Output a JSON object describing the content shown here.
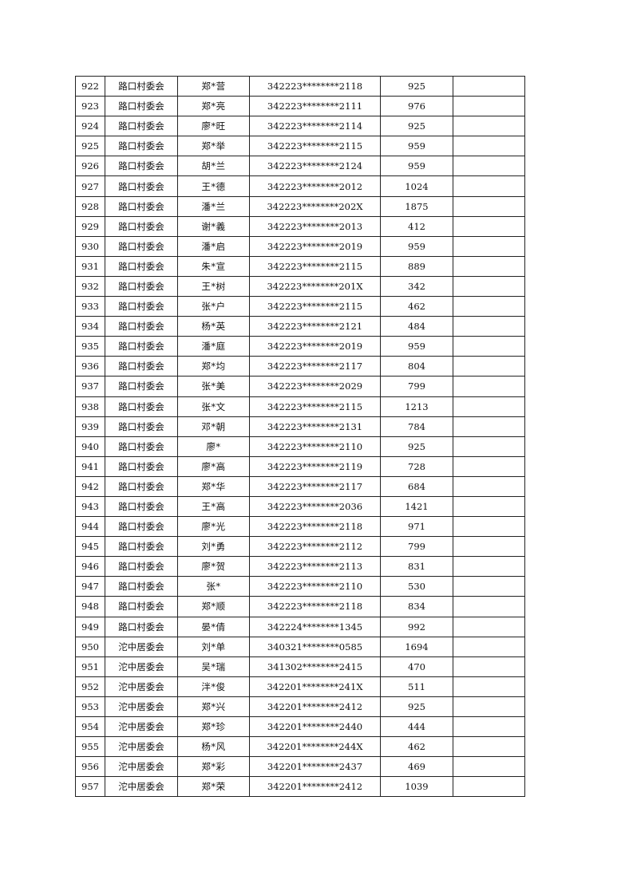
{
  "table": {
    "rows": [
      [
        "922",
        "路口村委会",
        "郑*营",
        "342223********2118",
        "925",
        ""
      ],
      [
        "923",
        "路口村委会",
        "郑*亮",
        "342223********2111",
        "976",
        ""
      ],
      [
        "924",
        "路口村委会",
        "廖*旺",
        "342223********2114",
        "925",
        ""
      ],
      [
        "925",
        "路口村委会",
        "郑*举",
        "342223********2115",
        "959",
        ""
      ],
      [
        "926",
        "路口村委会",
        "胡*兰",
        "342223********2124",
        "959",
        ""
      ],
      [
        "927",
        "路口村委会",
        "王*德",
        "342223********2012",
        "1024",
        ""
      ],
      [
        "928",
        "路口村委会",
        "潘*兰",
        "342223********202X",
        "1875",
        ""
      ],
      [
        "929",
        "路口村委会",
        "谢*義",
        "342223********2013",
        "412",
        ""
      ],
      [
        "930",
        "路口村委会",
        "潘*启",
        "342223********2019",
        "959",
        ""
      ],
      [
        "931",
        "路口村委会",
        "朱*宣",
        "342223********2115",
        "889",
        ""
      ],
      [
        "932",
        "路口村委会",
        "王*树",
        "342223********201X",
        "342",
        ""
      ],
      [
        "933",
        "路口村委会",
        "张*户",
        "342223********2115",
        "462",
        ""
      ],
      [
        "934",
        "路口村委会",
        "杨*英",
        "342223********2121",
        "484",
        ""
      ],
      [
        "935",
        "路口村委会",
        "潘*庭",
        "342223********2019",
        "959",
        ""
      ],
      [
        "936",
        "路口村委会",
        "郑*均",
        "342223********2117",
        "804",
        ""
      ],
      [
        "937",
        "路口村委会",
        "张*美",
        "342223********2029",
        "799",
        ""
      ],
      [
        "938",
        "路口村委会",
        "张*文",
        "342223********2115",
        "1213",
        ""
      ],
      [
        "939",
        "路口村委会",
        "邓*朝",
        "342223********2131",
        "784",
        ""
      ],
      [
        "940",
        "路口村委会",
        "廖*",
        "342223********2110",
        "925",
        ""
      ],
      [
        "941",
        "路口村委会",
        "廖*高",
        "342223********2119",
        "728",
        ""
      ],
      [
        "942",
        "路口村委会",
        "郑*华",
        "342223********2117",
        "684",
        ""
      ],
      [
        "943",
        "路口村委会",
        "王*高",
        "342223********2036",
        "1421",
        ""
      ],
      [
        "944",
        "路口村委会",
        "廖*光",
        "342223********2118",
        "971",
        ""
      ],
      [
        "945",
        "路口村委会",
        "刘*勇",
        "342223********2112",
        "799",
        ""
      ],
      [
        "946",
        "路口村委会",
        "廖*贺",
        "342223********2113",
        "831",
        ""
      ],
      [
        "947",
        "路口村委会",
        "张*",
        "342223********2110",
        "530",
        ""
      ],
      [
        "948",
        "路口村委会",
        "郑*顺",
        "342223********2118",
        "834",
        ""
      ],
      [
        "949",
        "路口村委会",
        "晏*倩",
        "342224********1345",
        "992",
        ""
      ],
      [
        "950",
        "沱中居委会",
        "刘*单",
        "340321********0585",
        "1694",
        ""
      ],
      [
        "951",
        "沱中居委会",
        "吴*瑞",
        "341302********2415",
        "470",
        ""
      ],
      [
        "952",
        "沱中居委会",
        "泮*俊",
        "342201********241X",
        "511",
        ""
      ],
      [
        "953",
        "沱中居委会",
        "郑*兴",
        "342201********2412",
        "925",
        ""
      ],
      [
        "954",
        "沱中居委会",
        "郑*珍",
        "342201********2440",
        "444",
        ""
      ],
      [
        "955",
        "沱中居委会",
        "杨*风",
        "342201********244X",
        "462",
        ""
      ],
      [
        "956",
        "沱中居委会",
        "郑*彩",
        "342201********2437",
        "469",
        ""
      ],
      [
        "957",
        "沱中居委会",
        "郑*荣",
        "342201********2412",
        "1039",
        ""
      ]
    ]
  }
}
